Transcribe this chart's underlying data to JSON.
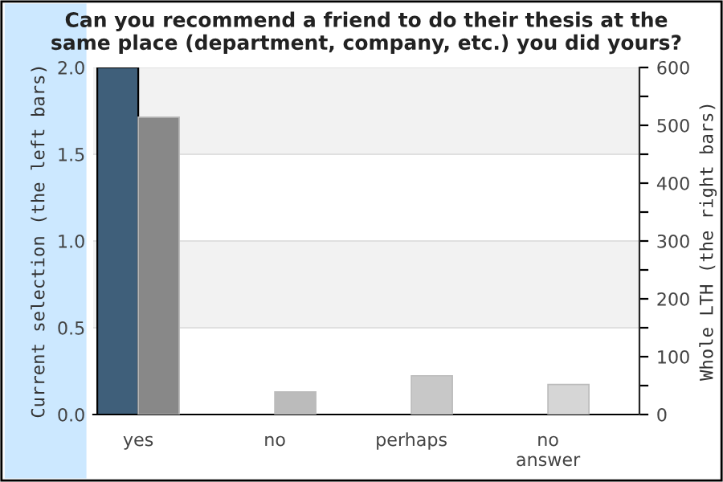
{
  "chart_data": {
    "type": "bar",
    "title": "Can you recommend a friend to do their thesis at the\nsame place (department, company, etc.) you did yours?",
    "ylabel": "Current selection (the left bars)",
    "y2label": "Whole LTH (the right bars)",
    "categories": [
      "yes",
      "no",
      "perhaps",
      "no\nanswer"
    ],
    "series": [
      {
        "color": "#3f5f7a",
        "values": [
          2,
          0,
          0,
          0
        ]
      },
      {
        "color": "#888888",
        "colors": [
          "#888888",
          "#bbbbbb",
          "#c8c8c8",
          "#d6d6d6"
        ],
        "values": [
          514,
          39,
          67,
          52
        ],
        "axis": "y2"
      }
    ],
    "ylim": [
      0,
      2.0
    ],
    "yticks": [
      {
        "value": 0,
        "label": "0.0"
      },
      0.5,
      {
        "value": 1,
        "label": "1.0"
      },
      1.5,
      {
        "value": 2,
        "label": "2.0"
      }
    ],
    "y2lim": [
      0,
      600
    ],
    "y2ticks": [
      0,
      {
        "value": 50,
        "label": null
      },
      100,
      {
        "value": 150,
        "label": null
      },
      200,
      {
        "value": 250,
        "label": null
      },
      300,
      {
        "value": 350,
        "label": null
      },
      400,
      {
        "value": 450,
        "label": null
      },
      500,
      {
        "value": 550,
        "label": null
      },
      600
    ],
    "bands": [
      {
        "axis": "y",
        "from": 0.5,
        "to": 1.0,
        "color": "#f2f2f2"
      },
      {
        "axis": "y",
        "from": 1.5,
        "to": 2.0,
        "color": "#f2f2f2"
      }
    ],
    "grid": "y",
    "legend": false
  }
}
